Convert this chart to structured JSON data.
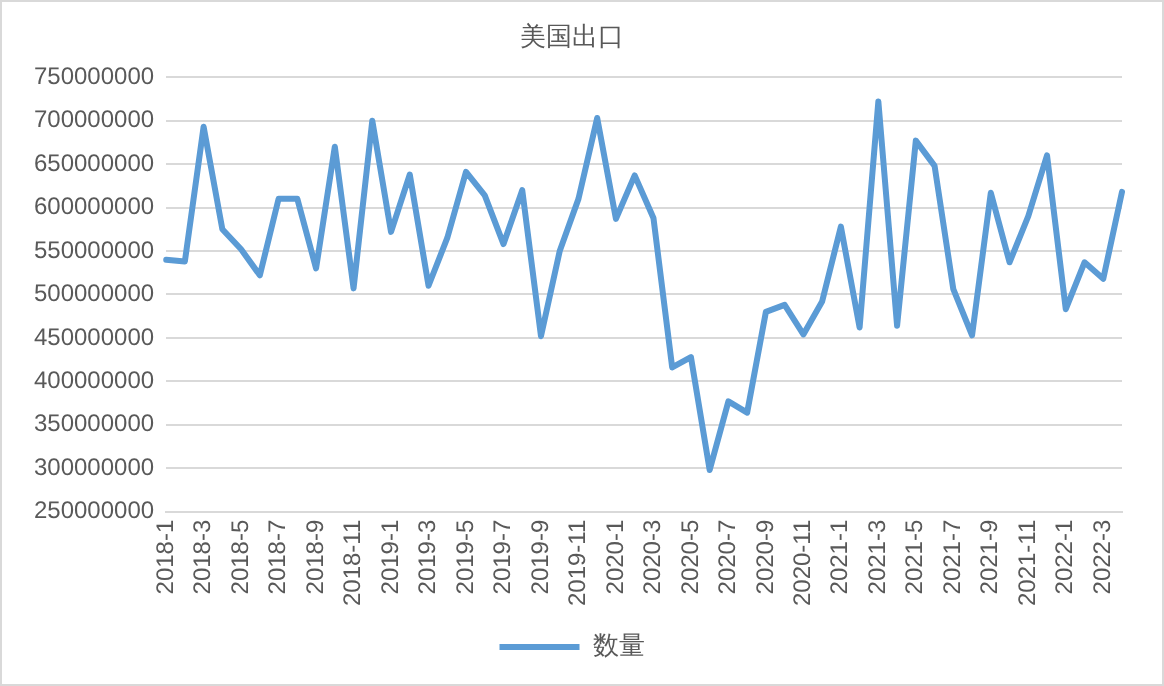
{
  "chart_data": {
    "type": "line",
    "title": "美国出口",
    "categories": [
      "2018-1",
      null,
      "2018-3",
      null,
      "2018-5",
      null,
      "2018-7",
      null,
      "2018-9",
      null,
      "2018-11",
      null,
      "2019-1",
      null,
      "2019-3",
      null,
      "2019-5",
      null,
      "2019-7",
      null,
      "2019-9",
      null,
      "2019-11",
      null,
      "2020-1",
      null,
      "2020-3",
      null,
      "2020-5",
      null,
      "2020-7",
      null,
      "2020-9",
      null,
      "2020-11",
      null,
      "2021-1",
      null,
      "2021-3",
      null,
      "2021-5",
      null,
      "2021-7",
      null,
      "2021-9",
      null,
      "2021-11",
      null,
      "2022-1",
      null,
      "2022-3",
      null
    ],
    "series": [
      {
        "name": "数量",
        "color": "#5b9bd5",
        "values": [
          540000000,
          538000000,
          693000000,
          575000000,
          552000000,
          522000000,
          610000000,
          610000000,
          530000000,
          670000000,
          507000000,
          700000000,
          572000000,
          638000000,
          510000000,
          565000000,
          641000000,
          614000000,
          558000000,
          620000000,
          452000000,
          550000000,
          610000000,
          703000000,
          587000000,
          637000000,
          588000000,
          416000000,
          428000000,
          298000000,
          377000000,
          364000000,
          480000000,
          488000000,
          454000000,
          492000000,
          578000000,
          462000000,
          722000000,
          464000000,
          677000000,
          648000000,
          506000000,
          453000000,
          617000000,
          537000000,
          590000000,
          660000000,
          483000000,
          537000000,
          518000000,
          618000000
        ]
      }
    ],
    "ylim": [
      250000000,
      750000000
    ],
    "yticks": [
      250000000,
      300000000,
      350000000,
      400000000,
      450000000,
      500000000,
      550000000,
      600000000,
      650000000,
      700000000,
      750000000
    ],
    "grid": "y",
    "legend": "bottom",
    "marker": "none",
    "line_style": "solid"
  }
}
